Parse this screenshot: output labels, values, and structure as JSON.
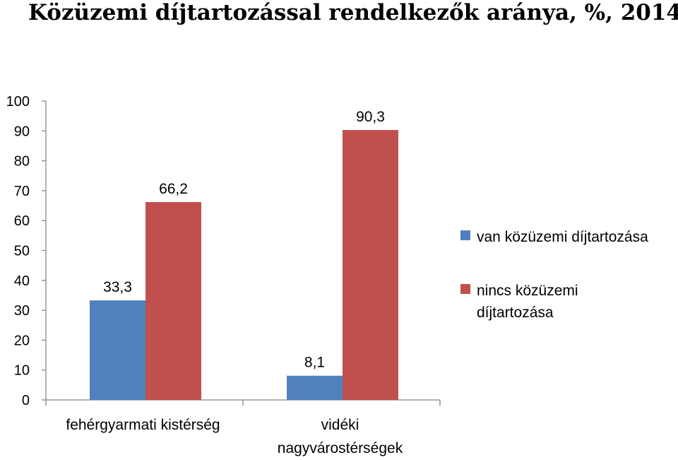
{
  "chart_data": {
    "type": "bar",
    "title": "Közüzemi díjtartozással rendelkezők aránya, %, 2014",
    "xlabel": "",
    "ylabel": "",
    "ylim": [
      0,
      100
    ],
    "yticks": [
      0,
      10,
      20,
      30,
      40,
      50,
      60,
      70,
      80,
      90,
      100
    ],
    "grid": false,
    "legend_position": "right",
    "categories": [
      [
        "fehérgyarmati kistérség"
      ],
      [
        "vidéki",
        "nagyvárostérségek"
      ]
    ],
    "series": [
      {
        "name": [
          "van közüzemi díjtartozása"
        ],
        "color": "#4F81BD",
        "values": [
          33.3,
          8.1
        ],
        "labels": [
          "33,3",
          "8,1"
        ]
      },
      {
        "name": [
          "nincs közüzemi",
          "díjtartozása"
        ],
        "color": "#C0504D",
        "values": [
          66.2,
          90.3
        ],
        "labels": [
          "66,2",
          "90,3"
        ]
      }
    ]
  }
}
